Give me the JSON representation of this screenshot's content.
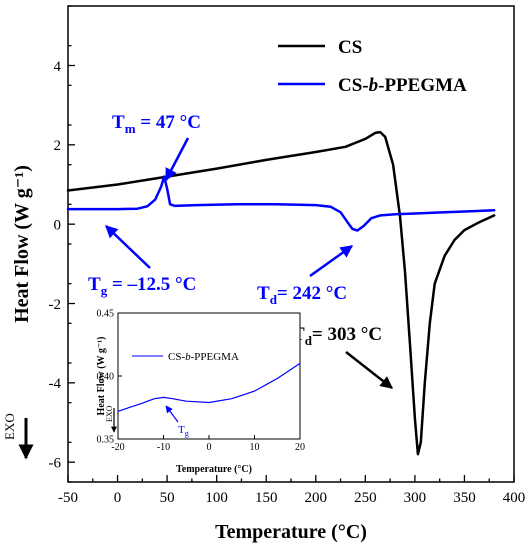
{
  "chart_data": [
    {
      "type": "line",
      "xlabel": "Temperature (°C)",
      "ylabel": "Heat Flow (W g⁻¹)",
      "xlim": [
        -50,
        400
      ],
      "ylim": [
        -6.5,
        5.5
      ],
      "xticks": [
        -50,
        0,
        50,
        100,
        150,
        200,
        250,
        300,
        350,
        400
      ],
      "yticks": [
        -6,
        -4,
        -2,
        0,
        2,
        4
      ],
      "grid": false,
      "legend": "top-right",
      "exo_label": "EXO",
      "series": [
        {
          "name": "CS",
          "color": "#000000",
          "x": [
            -50,
            0,
            50,
            100,
            150,
            200,
            230,
            250,
            260,
            265,
            270,
            278,
            285,
            290,
            295,
            300,
            303,
            306,
            310,
            315,
            320,
            330,
            340,
            350,
            365,
            380
          ],
          "y": [
            0.85,
            1.0,
            1.2,
            1.4,
            1.62,
            1.82,
            1.95,
            2.15,
            2.3,
            2.32,
            2.2,
            1.5,
            0.2,
            -1.2,
            -3.0,
            -4.9,
            -5.8,
            -5.5,
            -4.0,
            -2.5,
            -1.5,
            -0.8,
            -0.4,
            -0.15,
            0.05,
            0.22
          ]
        },
        {
          "name": "CS-b-PPEGMA",
          "color": "#0000ff",
          "x": [
            -50,
            -25,
            0,
            20,
            30,
            38,
            44,
            47,
            50,
            53,
            58,
            80,
            120,
            160,
            200,
            215,
            225,
            232,
            237,
            242,
            248,
            256,
            265,
            280,
            300,
            330,
            360,
            380
          ],
          "y": [
            0.38,
            0.38,
            0.38,
            0.39,
            0.45,
            0.62,
            0.95,
            1.2,
            0.9,
            0.5,
            0.46,
            0.48,
            0.5,
            0.5,
            0.48,
            0.44,
            0.3,
            0.05,
            -0.12,
            -0.16,
            -0.05,
            0.15,
            0.22,
            0.25,
            0.27,
            0.3,
            0.33,
            0.35
          ]
        }
      ],
      "annotations": [
        {
          "sym": "T",
          "sub": "m",
          "rest": " = 47 °C",
          "x": 47,
          "y": 1.2
        },
        {
          "sym": "T",
          "sub": "g",
          "rest": " = –12.5 °C",
          "x": -12.5,
          "y": 0.38
        },
        {
          "sym": "T",
          "sub": "d",
          "rest": "= 242 °C",
          "x": 242,
          "y": -0.16
        },
        {
          "sym": "T",
          "sub": "d",
          "rest": "= 303 °C",
          "x": 303,
          "y": -5.8
        }
      ]
    },
    {
      "type": "line",
      "inset": true,
      "xlabel": "Temperature (°C)",
      "ylabel": "Heat Flow (W g⁻¹)",
      "exo_label": "EXO",
      "xlim": [
        -20,
        20
      ],
      "ylim": [
        0.35,
        0.45
      ],
      "xticks": [
        -20,
        -10,
        0,
        10,
        20
      ],
      "yticks": [
        0.35,
        0.4,
        0.45
      ],
      "series": [
        {
          "name": "CS-b-PPEGMA",
          "color": "#0000ff",
          "x": [
            -20,
            -15,
            -12,
            -10,
            -8,
            -5,
            0,
            5,
            10,
            15,
            20
          ],
          "y": [
            0.372,
            0.378,
            0.382,
            0.383,
            0.382,
            0.38,
            0.379,
            0.382,
            0.388,
            0.398,
            0.41
          ]
        }
      ],
      "annotation": {
        "sym": "T",
        "sub": "g",
        "x": -10,
        "y": 0.383
      }
    }
  ]
}
